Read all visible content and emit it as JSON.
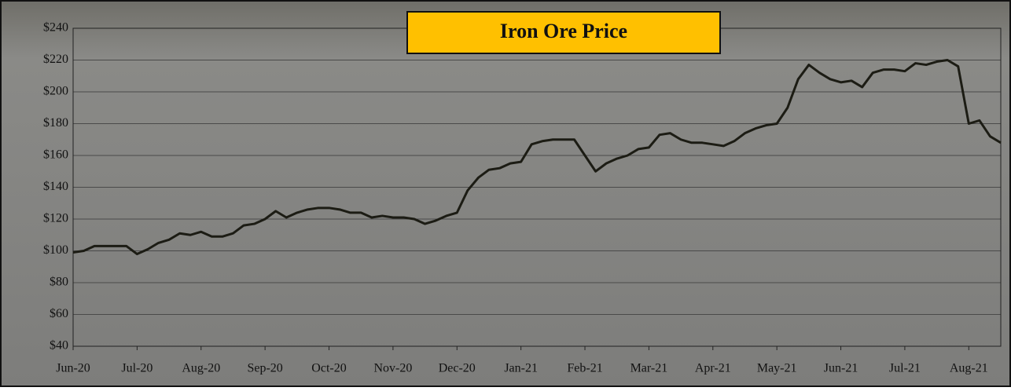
{
  "chart_data": {
    "type": "line",
    "title": "Iron Ore Price",
    "categories": [
      "Jun-20",
      null,
      null,
      null,
      null,
      null,
      "Jul-20",
      null,
      null,
      null,
      null,
      null,
      "Aug-20",
      null,
      null,
      null,
      null,
      null,
      "Sep-20",
      null,
      null,
      null,
      null,
      null,
      "Oct-20",
      null,
      null,
      null,
      null,
      null,
      "Nov-20",
      null,
      null,
      null,
      null,
      null,
      "Dec-20",
      null,
      null,
      null,
      null,
      null,
      "Jan-21",
      null,
      null,
      null,
      null,
      null,
      "Feb-21",
      null,
      null,
      null,
      null,
      null,
      "Mar-21",
      null,
      null,
      null,
      null,
      null,
      "Apr-21",
      null,
      null,
      null,
      null,
      null,
      "May-21",
      null,
      null,
      null,
      null,
      null,
      "Jun-21",
      null,
      null,
      null,
      null,
      null,
      "Jul-21",
      null,
      null,
      null,
      null,
      null,
      "Aug-21",
      null,
      null,
      null
    ],
    "series": [
      {
        "color": "#1c1c14",
        "values": [
          99,
          100,
          103,
          103,
          103,
          103,
          98,
          101,
          105,
          107,
          111,
          110,
          112,
          109,
          109,
          111,
          116,
          117,
          120,
          125,
          121,
          124,
          126,
          127,
          127,
          126,
          124,
          124,
          121,
          122,
          121,
          121,
          120,
          117,
          119,
          122,
          124,
          138,
          146,
          151,
          152,
          155,
          156,
          167,
          169,
          170,
          170,
          170,
          160,
          150,
          155,
          158,
          160,
          164,
          165,
          173,
          174,
          170,
          168,
          168,
          167,
          166,
          169,
          174,
          177,
          179,
          180,
          190,
          208,
          217,
          212,
          208,
          206,
          207,
          203,
          212,
          214,
          214,
          213,
          218,
          217,
          219,
          220,
          216,
          180,
          182,
          172,
          168
        ]
      }
    ],
    "ylim": [
      40,
      240
    ],
    "yticks": [
      {
        "value": 40,
        "label": "$40"
      },
      {
        "value": 60,
        "label": "$60"
      },
      {
        "value": 80,
        "label": "$80"
      },
      {
        "value": 100,
        "label": "$100"
      },
      {
        "value": 120,
        "label": "$120"
      },
      {
        "value": 140,
        "label": "$140"
      },
      {
        "value": 160,
        "label": "$160"
      },
      {
        "value": 180,
        "label": "$180"
      },
      {
        "value": 200,
        "label": "$200"
      },
      {
        "value": 220,
        "label": "$220"
      },
      {
        "value": 240,
        "label": "$240"
      }
    ],
    "grid": true
  }
}
